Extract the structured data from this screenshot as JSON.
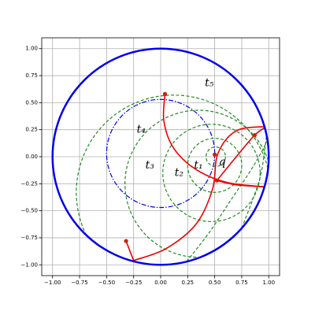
{
  "chart_data": {
    "type": "disk",
    "xlim": [
      -1.1,
      1.1
    ],
    "ylim": [
      -1.1,
      1.1
    ],
    "xticks": [
      {
        "value": -1,
        "label": "−1.00"
      },
      {
        "value": -0.75,
        "label": "−0.75"
      },
      {
        "value": -0.5,
        "label": "−0.50"
      },
      {
        "value": -0.25,
        "label": "−0.25"
      },
      {
        "value": 0,
        "label": "0.00"
      },
      {
        "value": 0.25,
        "label": "0.25"
      },
      {
        "value": 0.5,
        "label": "0.50"
      },
      {
        "value": 0.75,
        "label": "0.75"
      },
      {
        "value": 1,
        "label": "1.00"
      }
    ],
    "yticks": [
      {
        "value": -1,
        "label": "−1.00"
      },
      {
        "value": -0.75,
        "label": "−0.75"
      },
      {
        "value": -0.5,
        "label": "−0.50"
      },
      {
        "value": -0.25,
        "label": "−0.25"
      },
      {
        "value": 0,
        "label": "0.00"
      },
      {
        "value": 0.25,
        "label": "0.25"
      },
      {
        "value": 0.5,
        "label": "0.50"
      },
      {
        "value": 0.75,
        "label": "0.75"
      },
      {
        "value": 1,
        "label": "1.00"
      }
    ],
    "grid": true,
    "circles": [
      {
        "color": "#0000ee",
        "style": "bold",
        "cx": 0,
        "cy": 0,
        "r": 1
      },
      {
        "color": "#0000ee",
        "style": "dashdot",
        "cx": 0,
        "cy": 0.03,
        "r": 0.5
      },
      {
        "color": "#228b22",
        "style": "dashed",
        "cx": 0.51,
        "cy": 0,
        "r": 0.09
      },
      {
        "color": "#228b22",
        "style": "dashed",
        "cx": 0.5,
        "cy": -0.08,
        "r": 0.25
      },
      {
        "color": "#228b22",
        "style": "dashed",
        "cx": 0.47,
        "cy": -0.15,
        "r": 0.45
      },
      {
        "color": "#228b22",
        "style": "dashed",
        "cx": 0.35,
        "cy": -0.25,
        "r": 0.68
      },
      {
        "color": "#228b22",
        "style": "dashed",
        "cx": 0.12,
        "cy": -0.33,
        "r": 0.9
      }
    ],
    "curves": [
      {
        "color": "#228b22",
        "style": "dashed",
        "x": [
          0.24,
          0.45,
          0.65,
          0.85,
          0.99
        ],
        "y": [
          -0.97,
          -0.7,
          -0.4,
          -0.1,
          0.15
        ]
      },
      {
        "color": "#228b22",
        "style": "dashed",
        "x": [
          0.75,
          0.85,
          0.93,
          0.98
        ],
        "y": [
          -0.66,
          -0.4,
          -0.15,
          0.2
        ]
      },
      {
        "color": "#ee0000",
        "style": "solid",
        "x": [
          0.04,
          0.03,
          0.12,
          0.33,
          0.62,
          0.98
        ],
        "y": [
          0.58,
          0.33,
          0.08,
          -0.12,
          -0.24,
          -0.28
        ]
      },
      {
        "color": "#ee0000",
        "style": "solid",
        "x": [
          -0.25,
          0.05,
          0.33,
          0.48,
          0.53,
          0.7,
          0.98
        ],
        "y": [
          -0.96,
          -0.85,
          -0.62,
          -0.3,
          0.03,
          0.24,
          0.28
        ]
      },
      {
        "color": "#ee0000",
        "style": "solid",
        "x": [
          -0.32,
          -0.25
        ],
        "y": [
          -0.78,
          -0.96
        ]
      },
      {
        "color": "#ee0000",
        "style": "solid",
        "x": [
          0.52,
          0.7,
          0.98
        ],
        "y": [
          -0.22,
          -0.26,
          -0.28
        ]
      },
      {
        "color": "#ee0000",
        "style": "solid",
        "x": [
          0.52,
          0.7,
          0.87,
          0.98
        ],
        "y": [
          -0.22,
          0.0,
          0.2,
          0.28
        ]
      }
    ],
    "points": {
      "color": "#cc2200",
      "x": [
        0.04,
        0.87,
        0.52,
        -0.32,
        0.5
      ],
      "y": [
        0.58,
        0.2,
        -0.22,
        -0.78,
        0.02
      ]
    },
    "annotations": [
      {
        "text": "t₁",
        "x": 0.35,
        "y": -0.08
      },
      {
        "text": "t₂",
        "x": 0.17,
        "y": -0.15
      },
      {
        "text": "t₃",
        "x": -0.1,
        "y": -0.08
      },
      {
        "text": "t₄",
        "x": -0.18,
        "y": 0.25
      },
      {
        "text": "t₅",
        "x": 0.45,
        "y": 0.68
      },
      {
        "text": "q",
        "x": 0.57,
        "y": -0.05
      }
    ]
  }
}
